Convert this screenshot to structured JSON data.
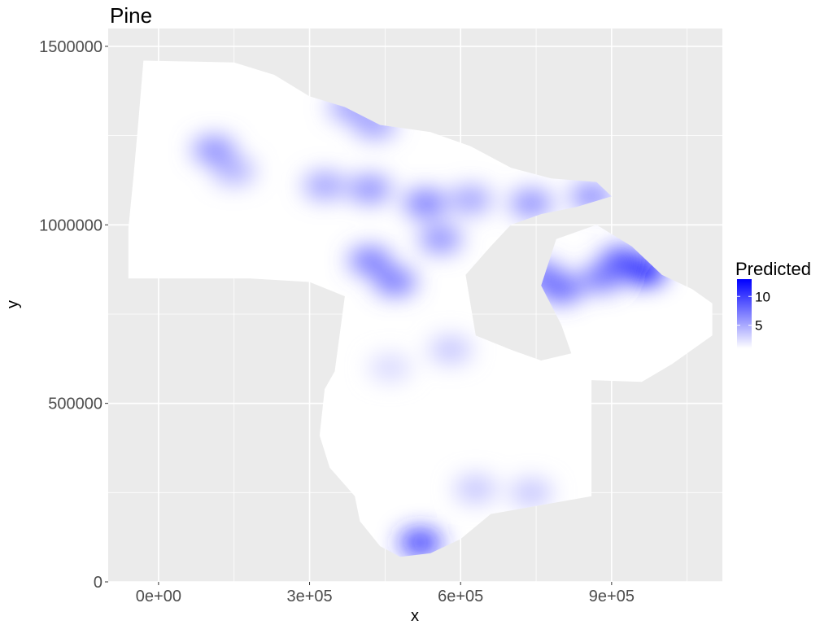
{
  "chart_data": {
    "type": "heatmap",
    "title": "Pine",
    "xlabel": "x",
    "ylabel": "y",
    "xlim": [
      -100000,
      1120000
    ],
    "ylim": [
      0,
      1550000
    ],
    "x_ticks": [
      {
        "value": 0,
        "label": "0e+00"
      },
      {
        "value": 300000,
        "label": "3e+05"
      },
      {
        "value": 600000,
        "label": "6e+05"
      },
      {
        "value": 900000,
        "label": "9e+05"
      }
    ],
    "y_ticks": [
      {
        "value": 0,
        "label": "0"
      },
      {
        "value": 500000,
        "label": "500000"
      },
      {
        "value": 1000000,
        "label": "1000000"
      },
      {
        "value": 1500000,
        "label": "1500000"
      }
    ],
    "x_minor": [
      -150000,
      150000,
      450000,
      750000,
      1050000
    ],
    "y_minor": [
      250000,
      750000,
      1250000
    ],
    "grid": true,
    "panel_color": "#ebebeb",
    "grid_color": "#ffffff",
    "legend": {
      "title": "Predicted",
      "position": "right",
      "low_color": "#ffffff",
      "high_color": "#0000ff",
      "range": [
        1,
        13
      ],
      "ticks": [
        {
          "value": 5,
          "label": "5"
        },
        {
          "value": 10,
          "label": "10"
        }
      ]
    },
    "region_outline": [
      [
        -30000,
        1460000
      ],
      [
        150000,
        1455000
      ],
      [
        230000,
        1420000
      ],
      [
        300000,
        1360000
      ],
      [
        370000,
        1330000
      ],
      [
        440000,
        1280000
      ],
      [
        540000,
        1260000
      ],
      [
        620000,
        1220000
      ],
      [
        700000,
        1160000
      ],
      [
        780000,
        1130000
      ],
      [
        870000,
        1120000
      ],
      [
        900000,
        1080000
      ],
      [
        830000,
        1050000
      ],
      [
        760000,
        1030000
      ],
      [
        700000,
        1000000
      ],
      [
        660000,
        940000
      ],
      [
        610000,
        860000
      ],
      [
        630000,
        690000
      ],
      [
        700000,
        650000
      ],
      [
        760000,
        620000
      ],
      [
        820000,
        640000
      ],
      [
        800000,
        720000
      ],
      [
        760000,
        830000
      ],
      [
        790000,
        960000
      ],
      [
        870000,
        1000000
      ],
      [
        940000,
        940000
      ],
      [
        1000000,
        860000
      ],
      [
        1060000,
        820000
      ],
      [
        1100000,
        780000
      ],
      [
        1100000,
        690000
      ],
      [
        1020000,
        610000
      ],
      [
        960000,
        560000
      ],
      [
        860000,
        565000
      ],
      [
        860000,
        240000
      ],
      [
        660000,
        190000
      ],
      [
        600000,
        120000
      ],
      [
        540000,
        80000
      ],
      [
        480000,
        70000
      ],
      [
        440000,
        100000
      ],
      [
        400000,
        170000
      ],
      [
        390000,
        240000
      ],
      [
        340000,
        320000
      ],
      [
        320000,
        410000
      ],
      [
        330000,
        540000
      ],
      [
        350000,
        590000
      ],
      [
        370000,
        800000
      ],
      [
        300000,
        840000
      ],
      [
        180000,
        850000
      ],
      [
        -60000,
        850000
      ],
      [
        -60000,
        990000
      ],
      [
        -50000,
        1130000
      ],
      [
        -40000,
        1290000
      ],
      [
        -30000,
        1460000
      ]
    ],
    "hotspots": [
      {
        "x": 110000,
        "y": 1210000,
        "value": 7
      },
      {
        "x": 150000,
        "y": 1150000,
        "value": 5
      },
      {
        "x": 380000,
        "y": 1330000,
        "value": 6
      },
      {
        "x": 430000,
        "y": 1280000,
        "value": 6
      },
      {
        "x": 330000,
        "y": 1110000,
        "value": 6
      },
      {
        "x": 420000,
        "y": 1100000,
        "value": 7
      },
      {
        "x": 530000,
        "y": 1060000,
        "value": 8
      },
      {
        "x": 620000,
        "y": 1070000,
        "value": 6
      },
      {
        "x": 560000,
        "y": 960000,
        "value": 7
      },
      {
        "x": 420000,
        "y": 900000,
        "value": 8
      },
      {
        "x": 470000,
        "y": 840000,
        "value": 8
      },
      {
        "x": 740000,
        "y": 1060000,
        "value": 7
      },
      {
        "x": 860000,
        "y": 1080000,
        "value": 7
      },
      {
        "x": 800000,
        "y": 820000,
        "value": 9
      },
      {
        "x": 760000,
        "y": 860000,
        "value": 8
      },
      {
        "x": 920000,
        "y": 900000,
        "value": 10
      },
      {
        "x": 965000,
        "y": 870000,
        "value": 13
      },
      {
        "x": 880000,
        "y": 850000,
        "value": 8
      },
      {
        "x": 520000,
        "y": 110000,
        "value": 11
      },
      {
        "x": 630000,
        "y": 260000,
        "value": 4
      },
      {
        "x": 740000,
        "y": 250000,
        "value": 4
      },
      {
        "x": 580000,
        "y": 650000,
        "value": 4
      },
      {
        "x": 460000,
        "y": 600000,
        "value": 3
      }
    ]
  }
}
